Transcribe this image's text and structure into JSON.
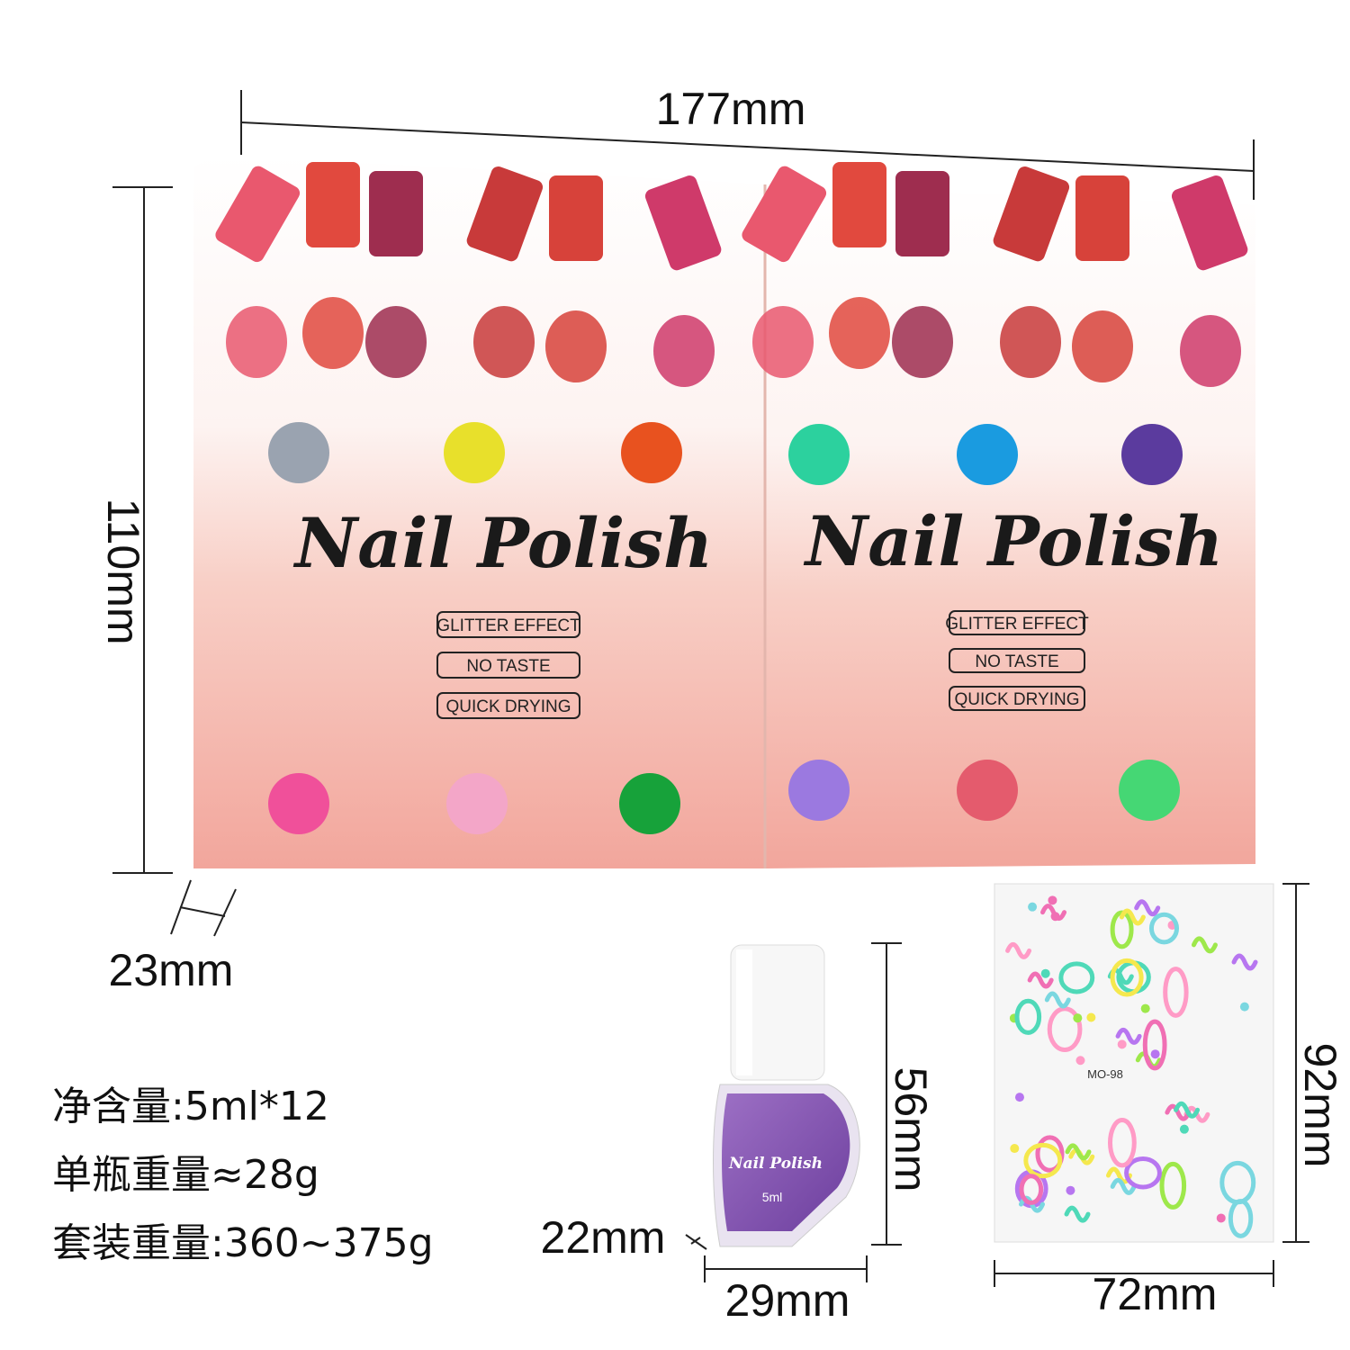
{
  "dimensions": {
    "box_width": "177mm",
    "box_height": "110mm",
    "box_depth": "23mm",
    "bottle_height": "56mm",
    "bottle_depth": "22mm",
    "bottle_width": "29mm",
    "sticker_width": "72mm",
    "sticker_height": "92mm"
  },
  "boxes": [
    {
      "title": "Nail Polish",
      "features": [
        "GLITTER EFFECT",
        "NO TASTE",
        "QUICK DRYING"
      ]
    },
    {
      "title": "Nail Polish",
      "features": [
        "GLITTER EFFECT",
        "NO TASTE",
        "QUICK DRYING"
      ]
    }
  ],
  "specs": [
    "净含量:5ml*12",
    "单瓶重量≈28g",
    "套装重量:360~375g"
  ],
  "bottle": {
    "brand": "Nail Polish",
    "volume": "5ml"
  },
  "sticker": {
    "code": "MO-98"
  }
}
